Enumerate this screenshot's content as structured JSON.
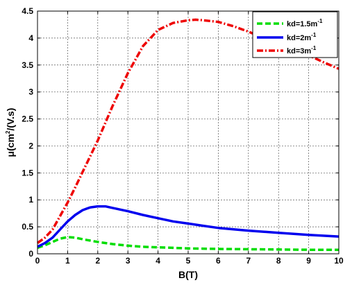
{
  "chart_data": {
    "type": "line",
    "xlabel": "B(T)",
    "ylabel": {
      "pre": "μ(cm",
      "sup": "2",
      "post": "/(V.s)"
    },
    "xlim": [
      0,
      10
    ],
    "ylim": [
      0,
      4.5
    ],
    "x_ticks": [
      "0",
      "1",
      "2",
      "3",
      "4",
      "5",
      "6",
      "7",
      "8",
      "9",
      "10"
    ],
    "y_ticks": [
      "0",
      "0.5",
      "1",
      "1.5",
      "2",
      "2.5",
      "3",
      "3.5",
      "4",
      "4.5"
    ],
    "grid": true,
    "legend_position": "top-right",
    "series": [
      {
        "name": "kd=1.5m-1",
        "label": {
          "pre": "kd=1.5m",
          "sup": "-1"
        },
        "color": "#00dd00",
        "dash": "dashed",
        "x": [
          0,
          0.25,
          0.5,
          0.75,
          1,
          1.25,
          1.5,
          2,
          2.5,
          3,
          3.5,
          4,
          4.5,
          5,
          5.5,
          6,
          7,
          8,
          9,
          10
        ],
        "y": [
          0.11,
          0.16,
          0.22,
          0.28,
          0.31,
          0.3,
          0.27,
          0.22,
          0.18,
          0.15,
          0.13,
          0.12,
          0.11,
          0.1,
          0.095,
          0.09,
          0.085,
          0.08,
          0.075,
          0.075
        ]
      },
      {
        "name": "kd=2m-1",
        "label": {
          "pre": "kd=2m",
          "sup": "-1"
        },
        "color": "#0000ee",
        "dash": "solid",
        "x": [
          0,
          0.25,
          0.5,
          0.75,
          1,
          1.25,
          1.5,
          1.75,
          2,
          2.25,
          2.5,
          3,
          3.5,
          4,
          4.5,
          5,
          5.5,
          6,
          7,
          8,
          9,
          10
        ],
        "y": [
          0.13,
          0.2,
          0.3,
          0.45,
          0.6,
          0.72,
          0.81,
          0.86,
          0.88,
          0.88,
          0.85,
          0.79,
          0.72,
          0.66,
          0.6,
          0.56,
          0.52,
          0.48,
          0.43,
          0.39,
          0.35,
          0.32
        ]
      },
      {
        "name": "kd=3m-1",
        "label": {
          "pre": "kd=3m",
          "sup": "-1"
        },
        "color": "#ee0000",
        "dash": "dashdot",
        "x": [
          0,
          0.25,
          0.5,
          0.75,
          1,
          1.25,
          1.5,
          2,
          2.5,
          3,
          3.5,
          4,
          4.5,
          5,
          5.25,
          5.5,
          6,
          6.5,
          7,
          7.5,
          8,
          8.5,
          9,
          9.5,
          10
        ],
        "y": [
          0.2,
          0.3,
          0.45,
          0.7,
          0.95,
          1.23,
          1.52,
          2.1,
          2.75,
          3.35,
          3.85,
          4.15,
          4.28,
          4.33,
          4.34,
          4.33,
          4.3,
          4.22,
          4.12,
          4.0,
          3.9,
          3.78,
          3.68,
          3.55,
          3.43
        ]
      }
    ]
  }
}
